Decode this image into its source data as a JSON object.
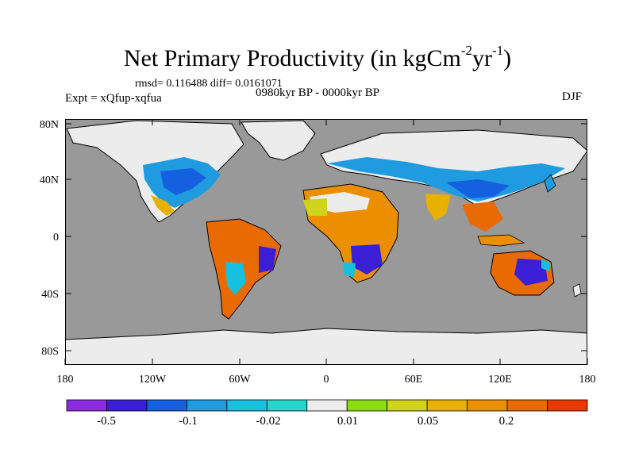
{
  "title": {
    "main": "Net Primary Productivity (in kgCm",
    "exp1": "-2",
    "mid": "yr",
    "exp2": "-1",
    "end": ")"
  },
  "stats": {
    "rmsd_label": "rmsd=",
    "rmsd_value": "0.116488",
    "diff_label": "diff=",
    "diff_value": "0.0161071"
  },
  "experiment": "Expt = xQfup-xqfua",
  "period": "0980kyr BP - 0000kyr BP",
  "season": "DJF",
  "lat_ticks": [
    "80N",
    "40N",
    "0",
    "40S",
    "80S"
  ],
  "lon_ticks": [
    "180",
    "120W",
    "60W",
    "0",
    "60E",
    "120E",
    "180"
  ],
  "colorbar": {
    "colors": [
      "#8a2be2",
      "#3a1fd6",
      "#1560e0",
      "#1f9be0",
      "#18c0e0",
      "#26d4cc",
      "#ececec",
      "#8adc10",
      "#cfd31a",
      "#e8b000",
      "#eb8f00",
      "#e86a00",
      "#e83a00"
    ],
    "labels": [
      "-0.5",
      "-0.1",
      "-0.02",
      "0.01",
      "0.05",
      "0.2"
    ]
  },
  "map_colors": {
    "ocean": "#999999",
    "ice": "#ececec",
    "coast": "#000000"
  }
}
